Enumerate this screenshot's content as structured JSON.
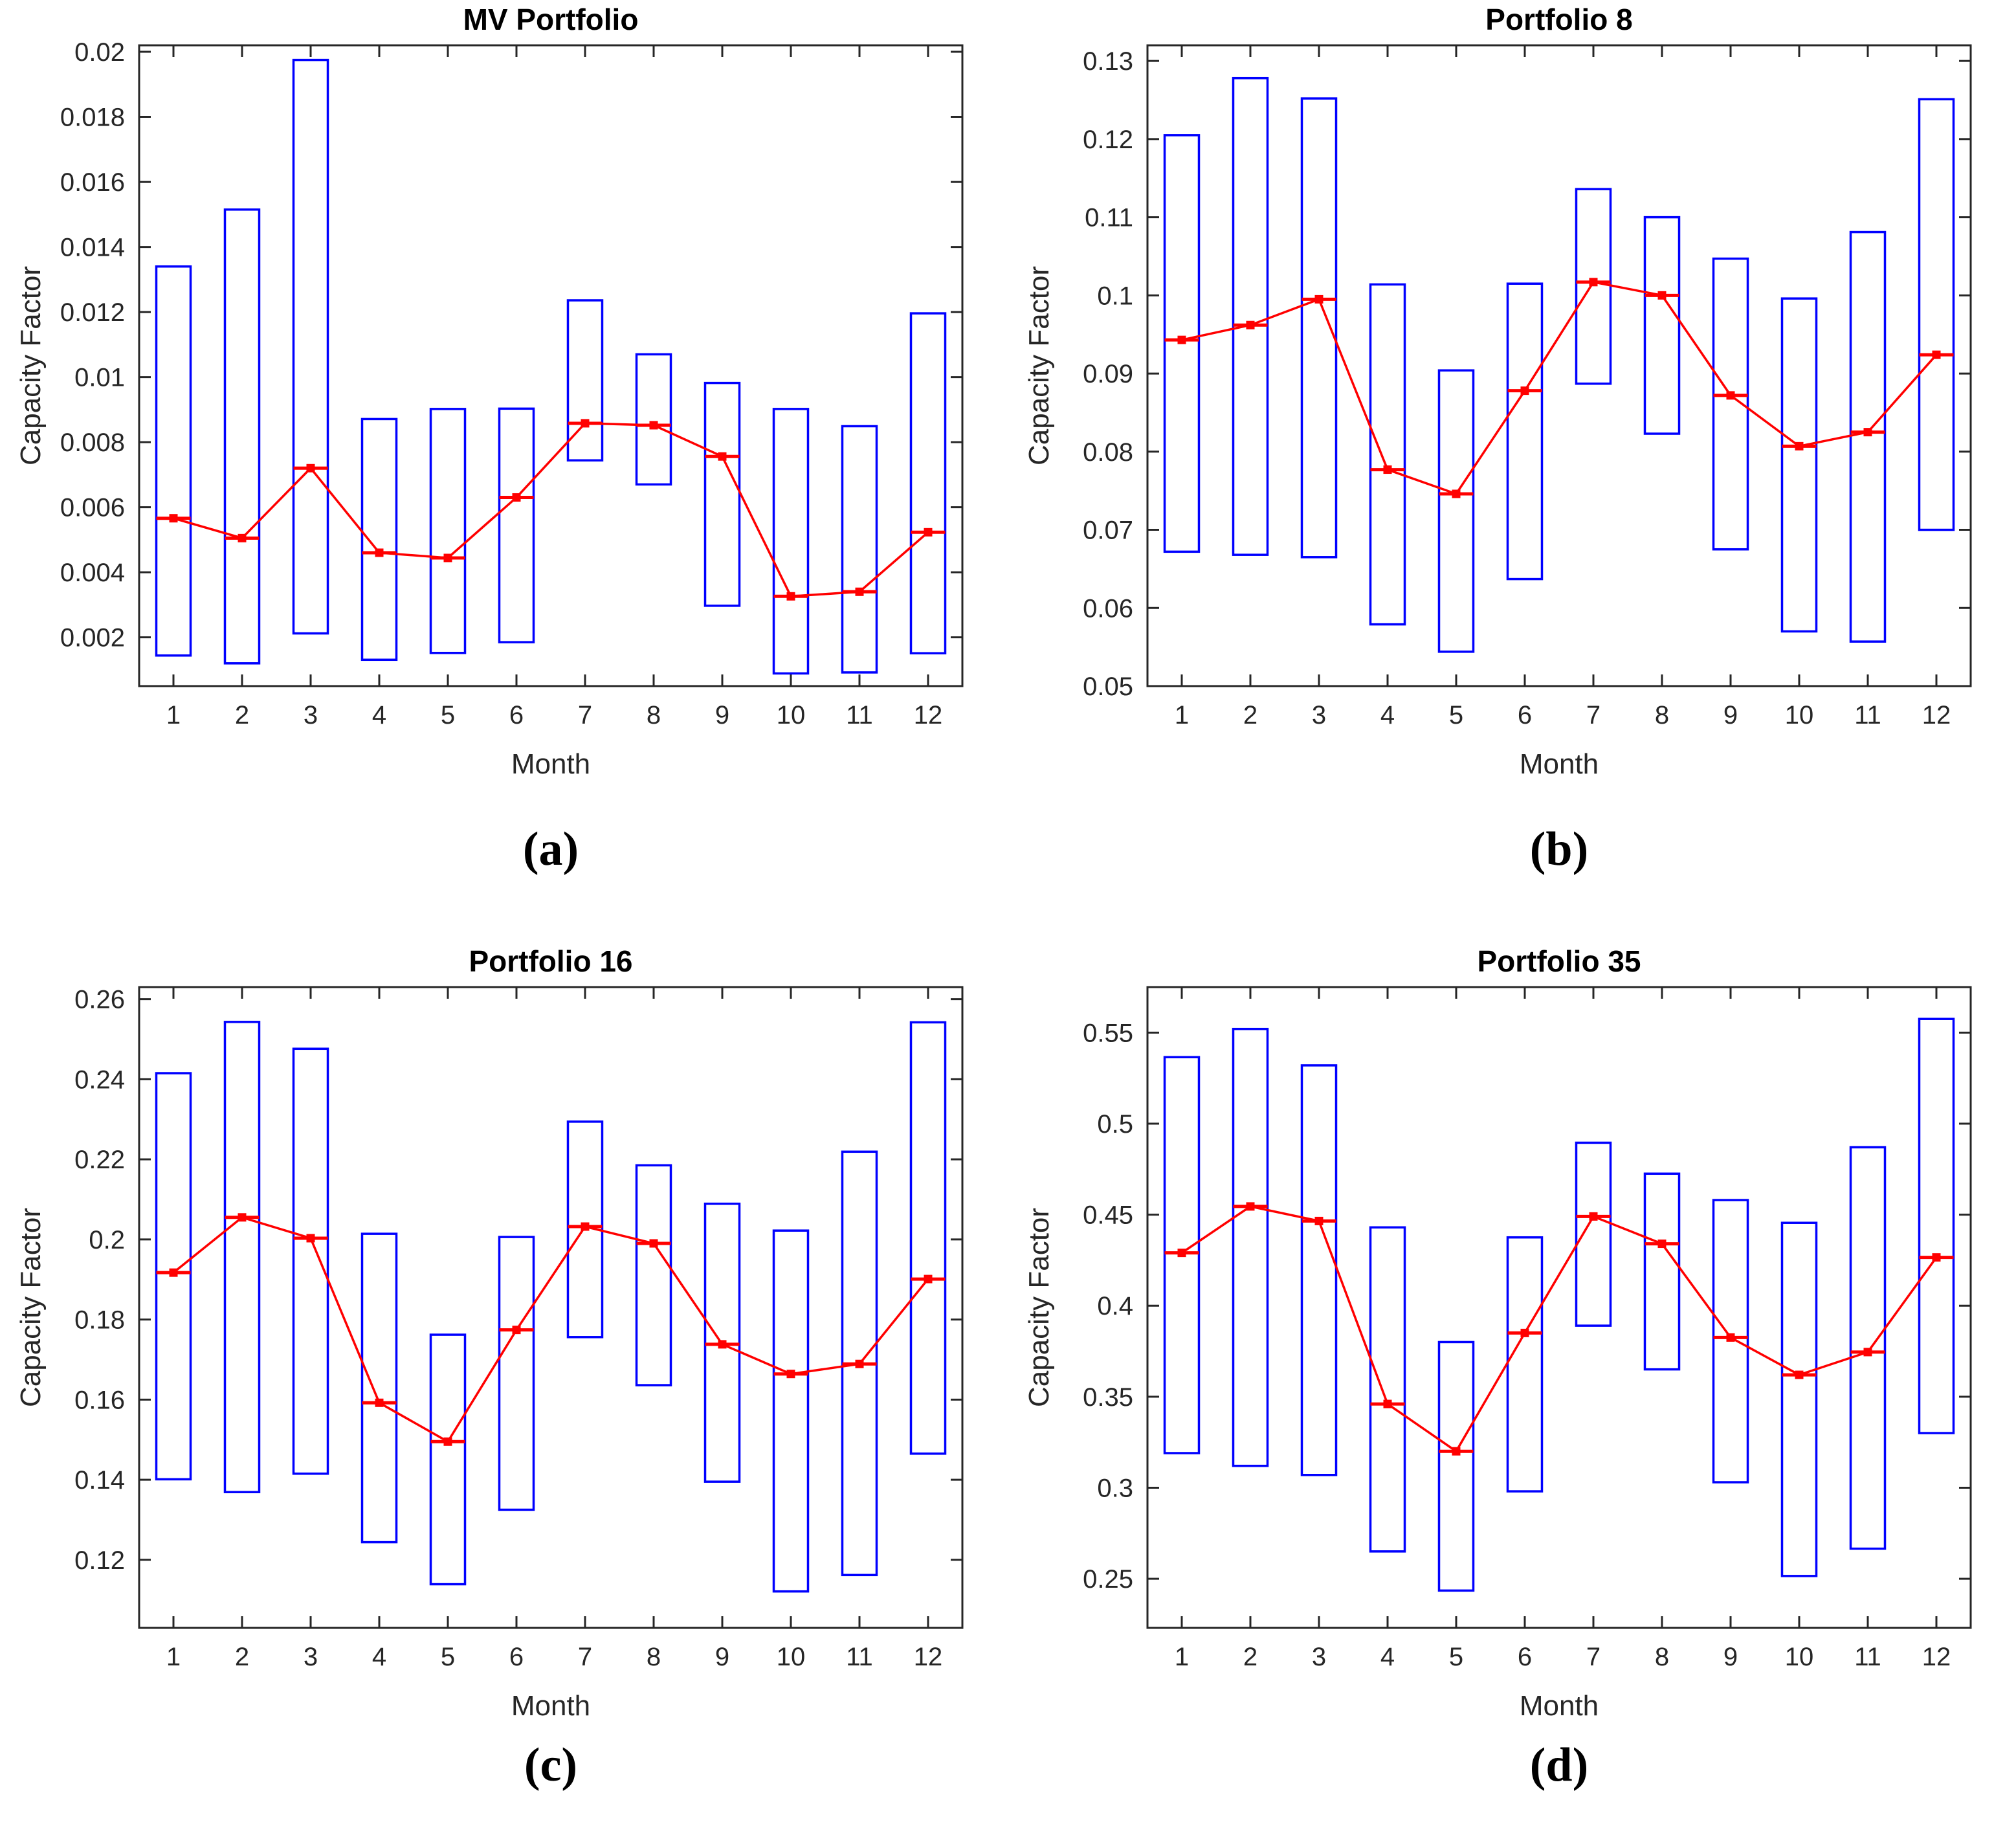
{
  "figure": {
    "background": "#ffffff",
    "captions": {
      "a": "(a)",
      "b": "(b)",
      "c": "(c)",
      "d": "(d)"
    }
  },
  "style": {
    "box_color": "#0000ff",
    "line_color": "#ff0000",
    "axis_color": "#262626",
    "title_color": "#000000"
  },
  "chart_data": [
    {
      "type": "bar",
      "subtype": "range-box-with-mean-line",
      "panel_label": "(a)",
      "title": "MV Portfolio",
      "xlabel": "Month",
      "ylabel": "Capacity Factor",
      "legend": "none",
      "grid": false,
      "categories": [
        "1",
        "2",
        "3",
        "4",
        "5",
        "6",
        "7",
        "8",
        "9",
        "10",
        "11",
        "12"
      ],
      "xlim": [
        0.5,
        12.5
      ],
      "ylim": [
        0.0005,
        0.0202
      ],
      "yticks": [
        0.002,
        0.004,
        0.006,
        0.008,
        0.01,
        0.012,
        0.014,
        0.016,
        0.018,
        0.02
      ],
      "ytick_labels": [
        "0.002",
        "0.004",
        "0.006",
        "0.008",
        "0.01",
        "0.012",
        "0.014",
        "0.016",
        "0.018",
        "0.02"
      ],
      "series": [
        {
          "name": "range-low",
          "values": [
            0.00144,
            0.0012,
            0.00212,
            0.00131,
            0.00152,
            0.00185,
            0.00744,
            0.0067,
            0.00297,
            0.00089,
            0.00092,
            0.00151
          ]
        },
        {
          "name": "range-high",
          "values": [
            0.0134,
            0.01515,
            0.01975,
            0.00871,
            0.00902,
            0.00903,
            0.01236,
            0.0107,
            0.00982,
            0.00902,
            0.00849,
            0.01196
          ]
        },
        {
          "name": "mean",
          "values": [
            0.00566,
            0.00505,
            0.0072,
            0.0046,
            0.00444,
            0.0063,
            0.00858,
            0.00852,
            0.00756,
            0.00326,
            0.0034,
            0.00523
          ]
        }
      ]
    },
    {
      "type": "bar",
      "subtype": "range-box-with-mean-line",
      "panel_label": "(b)",
      "title": "Portfolio 8",
      "xlabel": "Month",
      "ylabel": "Capacity Factor",
      "legend": "none",
      "grid": false,
      "categories": [
        "1",
        "2",
        "3",
        "4",
        "5",
        "6",
        "7",
        "8",
        "9",
        "10",
        "11",
        "12"
      ],
      "xlim": [
        0.5,
        12.5
      ],
      "ylim": [
        0.05,
        0.132
      ],
      "yticks": [
        0.05,
        0.06,
        0.07,
        0.08,
        0.09,
        0.1,
        0.11,
        0.12,
        0.13
      ],
      "ytick_labels": [
        "0.05",
        "0.06",
        "0.07",
        "0.08",
        "0.09",
        "0.1",
        "0.11",
        "0.12",
        "0.13"
      ],
      "series": [
        {
          "name": "range-low",
          "values": [
            0.0672,
            0.0668,
            0.0665,
            0.0579,
            0.0544,
            0.0637,
            0.0887,
            0.0823,
            0.0675,
            0.057,
            0.0557,
            0.07
          ]
        },
        {
          "name": "range-high",
          "values": [
            0.1205,
            0.1278,
            0.1252,
            0.1014,
            0.0904,
            0.1015,
            0.1136,
            0.11,
            0.1047,
            0.0996,
            0.1081,
            0.1251
          ]
        },
        {
          "name": "mean",
          "values": [
            0.0943,
            0.0962,
            0.0995,
            0.0777,
            0.0746,
            0.0878,
            0.1017,
            0.1,
            0.0872,
            0.0807,
            0.0825,
            0.0924
          ]
        }
      ]
    },
    {
      "type": "bar",
      "subtype": "range-box-with-mean-line",
      "panel_label": "(c)",
      "title": "Portfolio 16",
      "xlabel": "Month",
      "ylabel": "Capacity Factor",
      "legend": "none",
      "grid": false,
      "categories": [
        "1",
        "2",
        "3",
        "4",
        "5",
        "6",
        "7",
        "8",
        "9",
        "10",
        "11",
        "12"
      ],
      "xlim": [
        0.5,
        12.5
      ],
      "ylim": [
        0.103,
        0.263
      ],
      "yticks": [
        0.12,
        0.14,
        0.16,
        0.18,
        0.2,
        0.22,
        0.24,
        0.26
      ],
      "ytick_labels": [
        "0.12",
        "0.14",
        "0.16",
        "0.18",
        "0.2",
        "0.22",
        "0.24",
        "0.26"
      ],
      "series": [
        {
          "name": "range-low",
          "values": [
            0.1401,
            0.1369,
            0.1415,
            0.1244,
            0.1139,
            0.1325,
            0.1756,
            0.1636,
            0.1395,
            0.1121,
            0.1162,
            0.1465
          ]
        },
        {
          "name": "range-high",
          "values": [
            0.2415,
            0.2543,
            0.2476,
            0.2014,
            0.1762,
            0.2006,
            0.2294,
            0.2185,
            0.2089,
            0.2022,
            0.2219,
            0.2542
          ]
        },
        {
          "name": "mean",
          "values": [
            0.1917,
            0.2055,
            0.2003,
            0.1592,
            0.1495,
            0.1774,
            0.2032,
            0.199,
            0.1738,
            0.1664,
            0.1689,
            0.1901
          ]
        }
      ]
    },
    {
      "type": "bar",
      "subtype": "range-box-with-mean-line",
      "panel_label": "(d)",
      "title": "Portfolio 35",
      "xlabel": "Month",
      "ylabel": "Capacity Factor",
      "legend": "none",
      "grid": false,
      "categories": [
        "1",
        "2",
        "3",
        "4",
        "5",
        "6",
        "7",
        "8",
        "9",
        "10",
        "11",
        "12"
      ],
      "xlim": [
        0.5,
        12.5
      ],
      "ylim": [
        0.223,
        0.575
      ],
      "yticks": [
        0.25,
        0.3,
        0.35,
        0.4,
        0.45,
        0.5,
        0.55
      ],
      "ytick_labels": [
        "0.25",
        "0.3",
        "0.35",
        "0.4",
        "0.45",
        "0.5",
        "0.55"
      ],
      "series": [
        {
          "name": "range-low",
          "values": [
            0.319,
            0.312,
            0.307,
            0.265,
            0.2435,
            0.298,
            0.389,
            0.365,
            0.303,
            0.2515,
            0.2665,
            0.33
          ]
        },
        {
          "name": "range-high",
          "values": [
            0.5365,
            0.552,
            0.532,
            0.443,
            0.38,
            0.4375,
            0.4895,
            0.4725,
            0.458,
            0.4455,
            0.487,
            0.5575
          ]
        },
        {
          "name": "mean",
          "values": [
            0.429,
            0.4545,
            0.4465,
            0.346,
            0.32,
            0.385,
            0.449,
            0.434,
            0.3825,
            0.362,
            0.3745,
            0.4265
          ]
        }
      ]
    }
  ]
}
